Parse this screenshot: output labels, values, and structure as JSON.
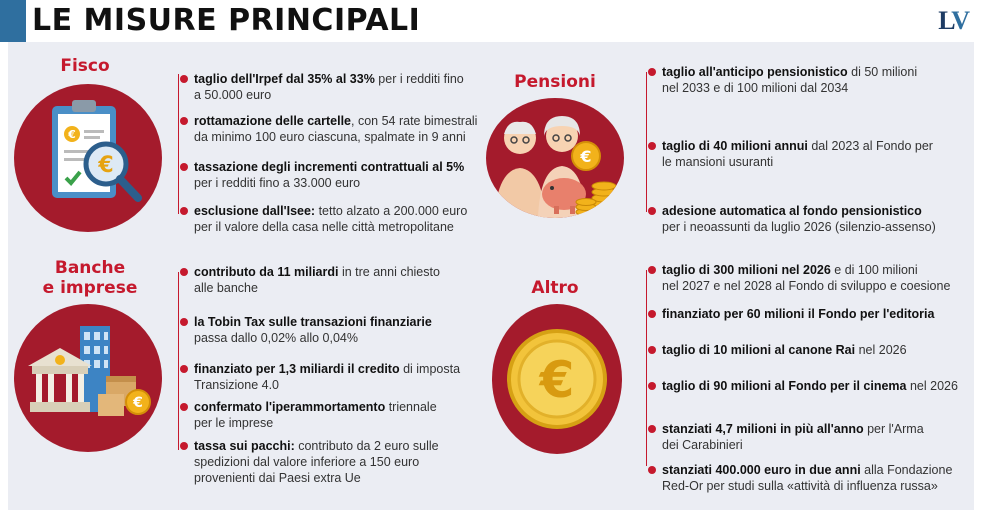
{
  "header": {
    "title": "LE MISURE PRINCIPALI",
    "logo_l": "L",
    "logo_v": "V"
  },
  "colors": {
    "accent": "#c5192d",
    "circle": "#a41b2c",
    "panel": "#ebedf3",
    "title_accent": "#2f6f9f"
  },
  "fisco": {
    "title": "Fisco",
    "icon": "clipboard-euro-magnifier-icon",
    "items": [
      {
        "bold": "taglio dell'Irpef dal 35% al 33%",
        "rest": " per i redditi fino",
        "line2": "a 50.000 euro"
      },
      {
        "bold": "rottamazione delle cartelle",
        "rest": ", con 54 rate bimestrali",
        "line2": "da minimo 100 euro ciascuna, spalmate in 9 anni"
      },
      {
        "bold": "tassazione degli incrementi contrattuali al 5%",
        "rest": "",
        "line2": "per i redditi fino a 33.000 euro"
      },
      {
        "bold": "esclusione dall'Isee:",
        "rest": " tetto alzato a 200.000 euro",
        "line2": "per il valore della casa nelle città metropolitane"
      }
    ]
  },
  "banche": {
    "title1": "Banche",
    "title2": "e imprese",
    "icon": "bank-buildings-icon",
    "items": [
      {
        "bold": "contributo da 11 miliardi",
        "rest": " in tre anni chiesto",
        "line2": "alle banche",
        "line3": ""
      },
      {
        "bold": "la Tobin Tax sulle transazioni finanziarie",
        "rest": "",
        "line2": "passa dallo 0,02% allo 0,04%",
        "line3": ""
      },
      {
        "bold": "finanziato per 1,3 miliardi il credito",
        "rest": " di imposta",
        "line2": "Transizione 4.0",
        "line3": ""
      },
      {
        "bold": "confermato  l'iperammortamento",
        "rest": " triennale",
        "line2": "per le imprese",
        "line3": ""
      },
      {
        "bold": "tassa sui pacchi:",
        "rest": " contributo da 2 euro sulle",
        "line2": "spedizioni dal valore inferiore a 150 euro",
        "line3": "provenienti dai Paesi extra Ue"
      }
    ]
  },
  "pensioni": {
    "title": "Pensioni",
    "icon": "elderly-couple-piggy-bank-icon",
    "items": [
      {
        "bold": "taglio all'anticipo pensionistico",
        "rest": " di 50 milioni",
        "line2": "nel 2033 e di 100 milioni dal 2034"
      },
      {
        "bold": "taglio di 40 milioni annui",
        "rest": "  dal 2023 al Fondo per",
        "line2": "le mansioni usuranti"
      },
      {
        "bold": "adesione automatica  al fondo pensionistico",
        "rest": "",
        "line2": "per i neoassunti da luglio  2026 (silenzio-assenso)"
      }
    ]
  },
  "altro": {
    "title": "Altro",
    "icon": "euro-coin-icon",
    "coin_symbol": "€",
    "items": [
      {
        "bold": "taglio di 300 milioni  nel 2026",
        "rest": " e di 100 milioni",
        "line2": "nel 2027 e nel 2028 al Fondo di sviluppo e coesione"
      },
      {
        "bold": "finanziato per 60 milioni  il Fondo per l'editoria",
        "rest": "",
        "line2": ""
      },
      {
        "bold": "taglio di 10 milioni al canone Rai",
        "rest": " nel 2026",
        "line2": ""
      },
      {
        "bold": "taglio di 90 milioni al Fondo per il cinema",
        "rest": " nel 2026",
        "line2": ""
      },
      {
        "bold": "stanziati 4,7 milioni in più all'anno",
        "rest": " per l'Arma",
        "line2": "dei Carabinieri"
      },
      {
        "bold": "stanziati 400.000 euro in due anni",
        "rest": " alla Fondazione",
        "line2": "Red-Or per studi sulla «attività di influenza russa»"
      }
    ]
  }
}
